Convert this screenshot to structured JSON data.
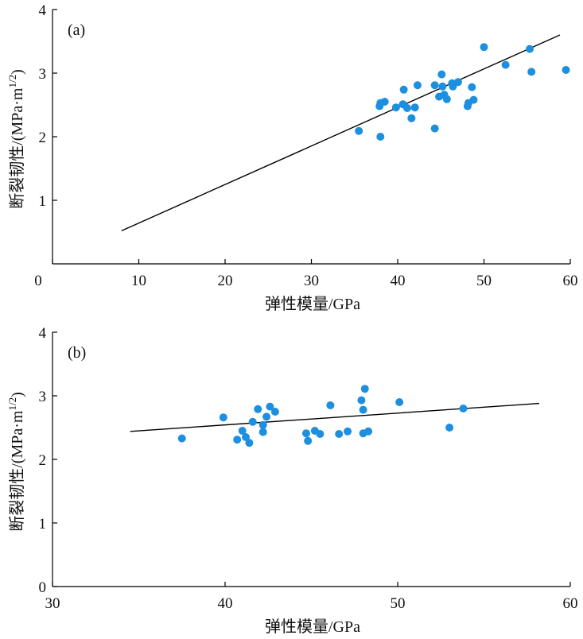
{
  "chart_data": [
    {
      "type": "scatter",
      "panel_label": "(a)",
      "xlabel": "弹性模量/GPa",
      "ylabel_main": "断裂韧性/(MPa·m",
      "ylabel_sup": "1/2",
      "ylabel_end": ")",
      "xlim": [
        0,
        60
      ],
      "ylim": [
        0,
        4
      ],
      "xticks": [
        0,
        10,
        20,
        30,
        40,
        50,
        60
      ],
      "yticks": [
        1,
        2,
        3,
        4
      ],
      "marker_color": "#1c8fe0",
      "line_color": "#000000",
      "points": [
        [
          35.5,
          2.09
        ],
        [
          38.0,
          2.0
        ],
        [
          37.9,
          2.48
        ],
        [
          38.0,
          2.53
        ],
        [
          38.5,
          2.55
        ],
        [
          39.8,
          2.46
        ],
        [
          40.6,
          2.51
        ],
        [
          40.7,
          2.74
        ],
        [
          41.1,
          2.45
        ],
        [
          41.6,
          2.29
        ],
        [
          42.0,
          2.46
        ],
        [
          42.3,
          2.81
        ],
        [
          44.3,
          2.13
        ],
        [
          44.3,
          2.81
        ],
        [
          44.8,
          2.63
        ],
        [
          45.1,
          2.98
        ],
        [
          45.2,
          2.79
        ],
        [
          45.4,
          2.66
        ],
        [
          45.7,
          2.59
        ],
        [
          46.3,
          2.84
        ],
        [
          46.4,
          2.79
        ],
        [
          47.0,
          2.86
        ],
        [
          48.1,
          2.48
        ],
        [
          48.2,
          2.53
        ],
        [
          48.6,
          2.78
        ],
        [
          48.8,
          2.58
        ],
        [
          50.0,
          3.41
        ],
        [
          52.5,
          3.13
        ],
        [
          55.3,
          3.38
        ],
        [
          55.5,
          3.02
        ],
        [
          59.5,
          3.05
        ]
      ],
      "fit_line": [
        [
          8.0,
          0.52
        ],
        [
          58.8,
          3.6
        ]
      ]
    },
    {
      "type": "scatter",
      "panel_label": "(b)",
      "xlabel": "弹性模量/GPa",
      "ylabel_main": "断裂韧性/(MPa·m",
      "ylabel_sup": "1/2",
      "ylabel_end": ")",
      "xlim": [
        30,
        60
      ],
      "ylim": [
        0,
        4
      ],
      "xticks": [
        30,
        40,
        50,
        60
      ],
      "yticks": [
        0,
        1,
        2,
        3,
        4
      ],
      "marker_color": "#1c8fe0",
      "line_color": "#000000",
      "points": [
        [
          37.5,
          2.33
        ],
        [
          39.9,
          2.66
        ],
        [
          40.7,
          2.31
        ],
        [
          41.0,
          2.45
        ],
        [
          41.2,
          2.35
        ],
        [
          41.4,
          2.26
        ],
        [
          41.6,
          2.59
        ],
        [
          41.9,
          2.79
        ],
        [
          42.2,
          2.54
        ],
        [
          42.2,
          2.43
        ],
        [
          42.4,
          2.67
        ],
        [
          42.6,
          2.83
        ],
        [
          42.9,
          2.75
        ],
        [
          44.7,
          2.41
        ],
        [
          44.8,
          2.29
        ],
        [
          45.2,
          2.45
        ],
        [
          45.5,
          2.4
        ],
        [
          46.1,
          2.85
        ],
        [
          46.6,
          2.4
        ],
        [
          47.1,
          2.44
        ],
        [
          47.9,
          2.93
        ],
        [
          48.0,
          2.78
        ],
        [
          48.0,
          2.41
        ],
        [
          48.1,
          3.11
        ],
        [
          48.3,
          2.44
        ],
        [
          50.1,
          2.9
        ],
        [
          53.0,
          2.5
        ],
        [
          53.8,
          2.8
        ]
      ],
      "fit_line": [
        [
          34.5,
          2.44
        ],
        [
          58.2,
          2.88
        ]
      ]
    }
  ]
}
